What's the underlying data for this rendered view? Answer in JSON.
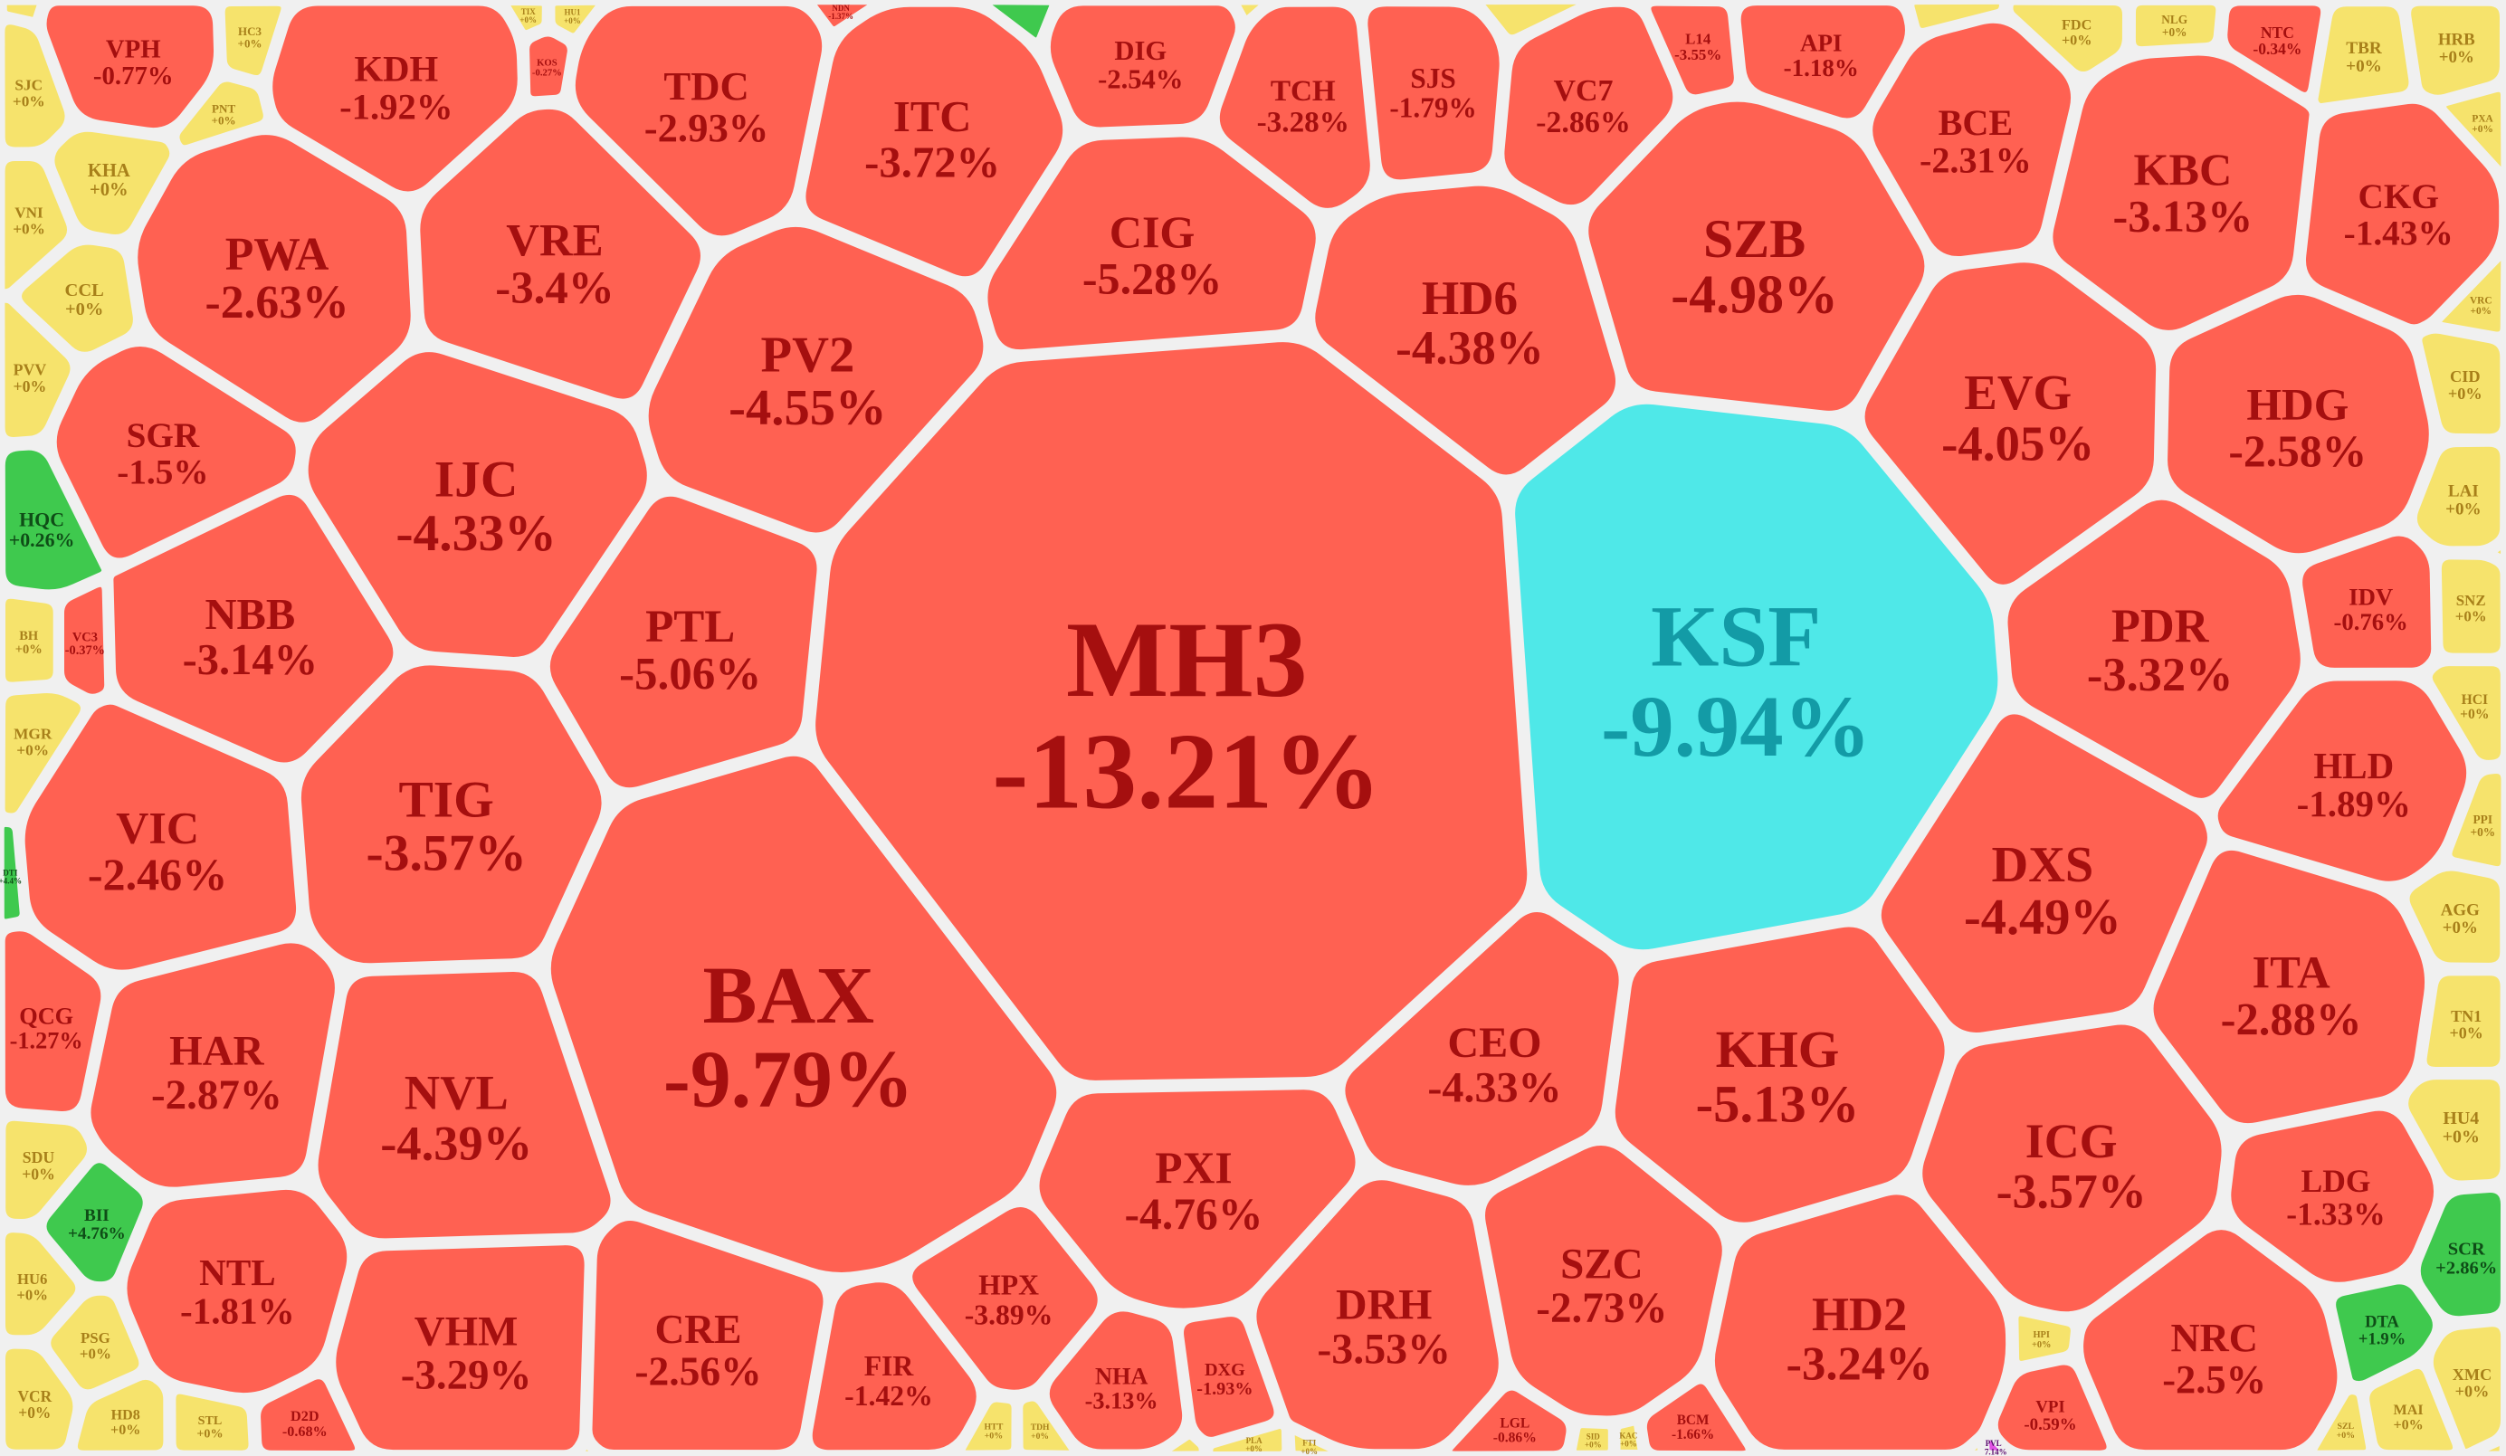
{
  "colors": {
    "down": "#ff6152",
    "down_text": "#a50f0f",
    "floor": "#4fe8e8",
    "floor_text": "#139ba6",
    "ref": "#f6e36c",
    "ref_text": "#a8801a",
    "up": "#3fc94e",
    "up_text": "#0f4d17",
    "ceiling": "#e052e4",
    "ceiling_text": "#5a0b6e",
    "background": "#f0f0f0"
  },
  "chart_data": {
    "type": "voronoi-treemap",
    "title": "",
    "tiles": [
      {
        "ticker": "MH3",
        "change": "-13.21%",
        "status": "down"
      },
      {
        "ticker": "KSF",
        "change": "-9.94%",
        "status": "floor"
      },
      {
        "ticker": "BAX",
        "change": "-9.79%",
        "status": "down"
      },
      {
        "ticker": "PV2",
        "change": "-4.55%",
        "status": "down"
      },
      {
        "ticker": "CIG",
        "change": "-5.28%",
        "status": "down"
      },
      {
        "ticker": "HD6",
        "change": "-4.38%",
        "status": "down"
      },
      {
        "ticker": "SZB",
        "change": "-4.98%",
        "status": "down"
      },
      {
        "ticker": "PTL",
        "change": "-5.06%",
        "status": "down"
      },
      {
        "ticker": "IJC",
        "change": "-4.33%",
        "status": "down"
      },
      {
        "ticker": "TIG",
        "change": "-3.57%",
        "status": "down"
      },
      {
        "ticker": "NBB",
        "change": "-3.14%",
        "status": "down"
      },
      {
        "ticker": "VIC",
        "change": "-2.46%",
        "status": "down"
      },
      {
        "ticker": "PWA",
        "change": "-2.63%",
        "status": "down"
      },
      {
        "ticker": "VRE",
        "change": "-3.4%",
        "status": "down"
      },
      {
        "ticker": "SGR",
        "change": "-1.5%",
        "status": "down"
      },
      {
        "ticker": "KDH",
        "change": "-1.92%",
        "status": "down"
      },
      {
        "ticker": "TDC",
        "change": "-2.93%",
        "status": "down"
      },
      {
        "ticker": "ITC",
        "change": "-3.72%",
        "status": "down"
      },
      {
        "ticker": "DIG",
        "change": "-2.54%",
        "status": "down"
      },
      {
        "ticker": "TCH",
        "change": "-3.28%",
        "status": "down"
      },
      {
        "ticker": "SJS",
        "change": "-1.79%",
        "status": "down"
      },
      {
        "ticker": "VC7",
        "change": "-2.86%",
        "status": "down"
      },
      {
        "ticker": "API",
        "change": "-1.18%",
        "status": "down"
      },
      {
        "ticker": "BCE",
        "change": "-2.31%",
        "status": "down"
      },
      {
        "ticker": "KBC",
        "change": "-3.13%",
        "status": "down"
      },
      {
        "ticker": "CKG",
        "change": "-1.43%",
        "status": "down"
      },
      {
        "ticker": "EVG",
        "change": "-4.05%",
        "status": "down"
      },
      {
        "ticker": "HDG",
        "change": "-2.58%",
        "status": "down"
      },
      {
        "ticker": "PDR",
        "change": "-3.32%",
        "status": "down"
      },
      {
        "ticker": "IDV",
        "change": "-0.76%",
        "status": "down"
      },
      {
        "ticker": "HLD",
        "change": "-1.89%",
        "status": "down"
      },
      {
        "ticker": "DXS",
        "change": "-4.49%",
        "status": "down"
      },
      {
        "ticker": "ITA",
        "change": "-2.88%",
        "status": "down"
      },
      {
        "ticker": "KHG",
        "change": "-5.13%",
        "status": "down"
      },
      {
        "ticker": "CEO",
        "change": "-4.33%",
        "status": "down"
      },
      {
        "ticker": "PXI",
        "change": "-4.76%",
        "status": "down"
      },
      {
        "ticker": "NVL",
        "change": "-4.39%",
        "status": "down"
      },
      {
        "ticker": "HAR",
        "change": "-2.87%",
        "status": "down"
      },
      {
        "ticker": "ICG",
        "change": "-3.57%",
        "status": "down"
      },
      {
        "ticker": "LDG",
        "change": "-1.33%",
        "status": "down"
      },
      {
        "ticker": "NRC",
        "change": "-2.5%",
        "status": "down"
      },
      {
        "ticker": "HD2",
        "change": "-3.24%",
        "status": "down"
      },
      {
        "ticker": "SZC",
        "change": "-2.73%",
        "status": "down"
      },
      {
        "ticker": "DRH",
        "change": "-3.53%",
        "status": "down"
      },
      {
        "ticker": "VHM",
        "change": "-3.29%",
        "status": "down"
      },
      {
        "ticker": "CRE",
        "change": "-2.56%",
        "status": "down"
      },
      {
        "ticker": "FIR",
        "change": "-1.42%",
        "status": "down"
      },
      {
        "ticker": "HPX",
        "change": "-3.89%",
        "status": "down"
      },
      {
        "ticker": "NHA",
        "change": "-3.13%",
        "status": "down"
      },
      {
        "ticker": "DXG",
        "change": "-1.93%",
        "status": "down"
      },
      {
        "ticker": "NTL",
        "change": "-1.81%",
        "status": "down"
      },
      {
        "ticker": "VPH",
        "change": "-0.77%",
        "status": "down"
      },
      {
        "ticker": "QCG",
        "change": "-1.27%",
        "status": "down"
      },
      {
        "ticker": "D2D",
        "change": "-0.68%",
        "status": "down"
      },
      {
        "ticker": "LGL",
        "change": "-0.86%",
        "status": "down"
      },
      {
        "ticker": "BCM",
        "change": "-1.66%",
        "status": "down"
      },
      {
        "ticker": "VPI",
        "change": "-0.59%",
        "status": "down"
      },
      {
        "ticker": "NTC",
        "change": "-0.34%",
        "status": "down"
      },
      {
        "ticker": "KOS",
        "change": "-0.27%",
        "status": "down"
      },
      {
        "ticker": "VC3",
        "change": "-0.37%",
        "status": "down"
      },
      {
        "ticker": "L14",
        "change": "-3.55%",
        "status": "down"
      },
      {
        "ticker": "NDN",
        "change": "-1.37%",
        "status": "down"
      },
      {
        "ticker": "HQC",
        "change": "+0.26%",
        "status": "up"
      },
      {
        "ticker": "BII",
        "change": "+4.76%",
        "status": "up"
      },
      {
        "ticker": "SCR",
        "change": "+2.86%",
        "status": "up"
      },
      {
        "ticker": "DTA",
        "change": "+1.9%",
        "status": "up"
      },
      {
        "ticker": "DTI",
        "change": "+4.4%",
        "status": "up"
      },
      {
        "ticker": "PVL",
        "change": "+7.14%",
        "status": "ceiling"
      },
      {
        "ticker": "SJC",
        "change": "+0%",
        "status": "ref"
      },
      {
        "ticker": "HC3",
        "change": "+0%",
        "status": "ref"
      },
      {
        "ticker": "PNT",
        "change": "+0%",
        "status": "ref"
      },
      {
        "ticker": "KHA",
        "change": "+0%",
        "status": "ref"
      },
      {
        "ticker": "VNI",
        "change": "+0%",
        "status": "ref"
      },
      {
        "ticker": "CCL",
        "change": "+0%",
        "status": "ref"
      },
      {
        "ticker": "PVV",
        "change": "+0%",
        "status": "ref"
      },
      {
        "ticker": "BH",
        "change": "+0%",
        "status": "ref"
      },
      {
        "ticker": "MGR",
        "change": "+0%",
        "status": "ref"
      },
      {
        "ticker": "SDU",
        "change": "+0%",
        "status": "ref"
      },
      {
        "ticker": "HU6",
        "change": "+0%",
        "status": "ref"
      },
      {
        "ticker": "PSG",
        "change": "+0%",
        "status": "ref"
      },
      {
        "ticker": "VCR",
        "change": "+0%",
        "status": "ref"
      },
      {
        "ticker": "HD8",
        "change": "+0%",
        "status": "ref"
      },
      {
        "ticker": "STL",
        "change": "+0%",
        "status": "ref"
      },
      {
        "ticker": "HTT",
        "change": "+0%",
        "status": "ref"
      },
      {
        "ticker": "TDH",
        "change": "+0%",
        "status": "ref"
      },
      {
        "ticker": "PLA",
        "change": "+0%",
        "status": "ref"
      },
      {
        "ticker": "FTI",
        "change": "+0%",
        "status": "ref"
      },
      {
        "ticker": "SID",
        "change": "+0%",
        "status": "ref"
      },
      {
        "ticker": "KAC",
        "change": "+0%",
        "status": "ref"
      },
      {
        "ticker": "HPI",
        "change": "+0%",
        "status": "ref"
      },
      {
        "ticker": "SZL",
        "change": "+0%",
        "status": "ref"
      },
      {
        "ticker": "MAI",
        "change": "+0%",
        "status": "ref"
      },
      {
        "ticker": "XMC",
        "change": "+0%",
        "status": "ref"
      },
      {
        "ticker": "HU4",
        "change": "+0%",
        "status": "ref"
      },
      {
        "ticker": "TN1",
        "change": "+0%",
        "status": "ref"
      },
      {
        "ticker": "AGG",
        "change": "+0%",
        "status": "ref"
      },
      {
        "ticker": "PPI",
        "change": "+0%",
        "status": "ref"
      },
      {
        "ticker": "HCI",
        "change": "+0%",
        "status": "ref"
      },
      {
        "ticker": "SNZ",
        "change": "+0%",
        "status": "ref"
      },
      {
        "ticker": "LAI",
        "change": "+0%",
        "status": "ref"
      },
      {
        "ticker": "CID",
        "change": "+0%",
        "status": "ref"
      },
      {
        "ticker": "VRC",
        "change": "+0%",
        "status": "ref"
      },
      {
        "ticker": "PXA",
        "change": "+0%",
        "status": "ref"
      },
      {
        "ticker": "HRB",
        "change": "+0%",
        "status": "ref"
      },
      {
        "ticker": "TBR",
        "change": "+0%",
        "status": "ref"
      },
      {
        "ticker": "NLG",
        "change": "+0%",
        "status": "ref"
      },
      {
        "ticker": "FDC",
        "change": "+0%",
        "status": "ref"
      },
      {
        "ticker": "TIX",
        "change": "+0%",
        "status": "ref"
      },
      {
        "ticker": "HU1",
        "change": "+0%",
        "status": "ref"
      }
    ]
  }
}
